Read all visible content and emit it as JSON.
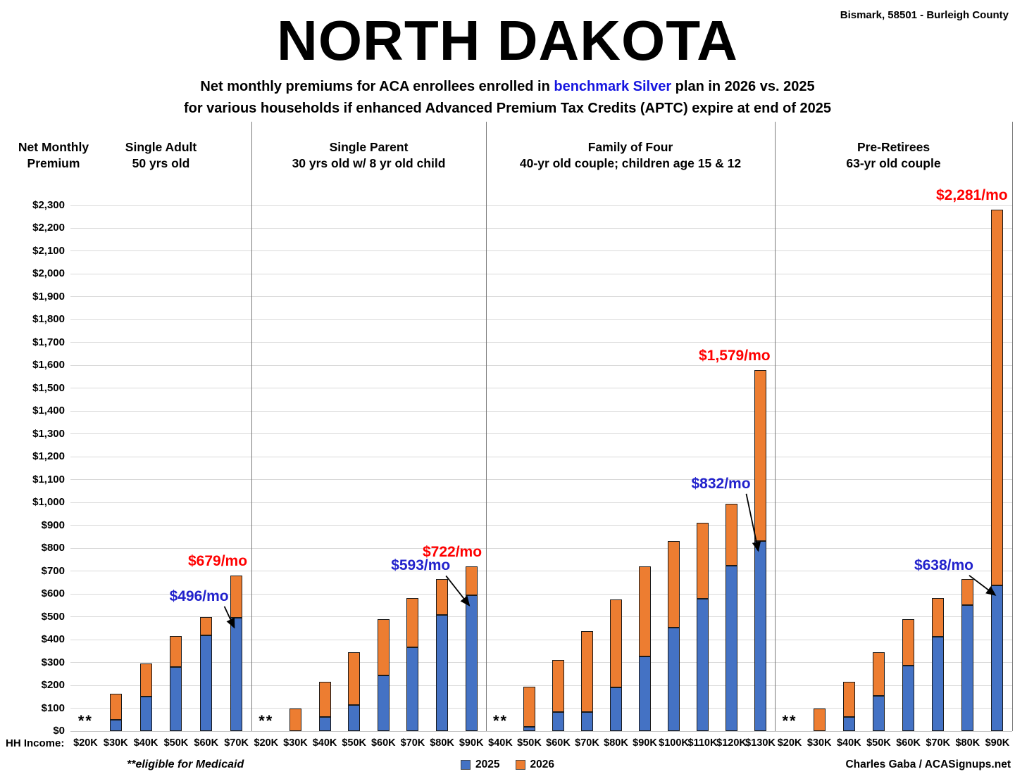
{
  "header": {
    "location": "Bismark, 58501 - Burleigh County",
    "title": "NORTH DAKOTA",
    "subtitle": {
      "part1": "Net monthly premiums for ACA enrollees enrolled in ",
      "highlight": "benchmark Silver",
      "part2": " plan in 2026 vs. 2025",
      "line2": "for various households if enhanced Advanced Premium Tax Credits (APTC) expire at end of 2025"
    }
  },
  "y_axis": {
    "title_line1": "Net Monthly",
    "title_line2": "Premium",
    "tick_labels": [
      "$0",
      "$100",
      "$200",
      "$300",
      "$400",
      "$500",
      "$600",
      "$700",
      "$800",
      "$900",
      "$1,000",
      "$1,100",
      "$1,200",
      "$1,300",
      "$1,400",
      "$1,500",
      "$1,600",
      "$1,700",
      "$1,800",
      "$1,900",
      "$2,000",
      "$2,100",
      "$2,200",
      "$2,300"
    ]
  },
  "x_axis": {
    "prefix": "HH Income:"
  },
  "chart_data": {
    "type": "bar",
    "stacked": true,
    "grid": true,
    "ylim": [
      0,
      2300
    ],
    "ytick_step": 100,
    "legend_position": "bottom-center",
    "series_meta": [
      {
        "name": "2025",
        "color": "#4472C4"
      },
      {
        "name": "2026",
        "color": "#ED7D31"
      }
    ],
    "medicaid_marker": "**",
    "panels": [
      {
        "title": [
          "Single Adult",
          "50 yrs old"
        ],
        "categories": [
          "$20K",
          "$30K",
          "$40K",
          "$50K",
          "$60K",
          "$70K"
        ],
        "medicaid": [
          true,
          false,
          false,
          false,
          false,
          false
        ],
        "net_2025": [
          null,
          48,
          151,
          281,
          420,
          496
        ],
        "net_2026": [
          null,
          163,
          297,
          415,
          500,
          679
        ],
        "label_2025": {
          "text": "$496/mo",
          "index": 5
        },
        "label_2026": {
          "text": "$679/mo",
          "index": 5
        }
      },
      {
        "title": [
          "Single Parent",
          "30 yrs old w/ 8 yr old child"
        ],
        "categories": [
          "$20K",
          "$30K",
          "$40K",
          "$50K",
          "$60K",
          "$70K",
          "$80K",
          "$90K"
        ],
        "medicaid": [
          true,
          false,
          false,
          false,
          false,
          false,
          false,
          false
        ],
        "net_2025": [
          null,
          0,
          61,
          114,
          242,
          366,
          508,
          593
        ],
        "net_2026": [
          null,
          100,
          215,
          345,
          490,
          583,
          665,
          722
        ],
        "label_2025": {
          "text": "$593/mo",
          "index": 7
        },
        "label_2026": {
          "text": "$722/mo",
          "index": 7
        }
      },
      {
        "title": [
          "Family of Four",
          "40-yr old couple; children age 15 & 12"
        ],
        "categories": [
          "$40K",
          "$50K",
          "$60K",
          "$70K",
          "$80K",
          "$90K",
          "$100K",
          "$110K",
          "$120K",
          "$130K"
        ],
        "medicaid": [
          true,
          false,
          false,
          false,
          false,
          false,
          false,
          false,
          false,
          false
        ],
        "net_2025": [
          null,
          18,
          82,
          84,
          192,
          326,
          452,
          580,
          723,
          832
        ],
        "net_2026": [
          null,
          195,
          310,
          437,
          575,
          720,
          832,
          912,
          995,
          1579
        ],
        "label_2025": {
          "text": "$832/mo",
          "index": 9
        },
        "label_2026": {
          "text": "$1,579/mo",
          "index": 9
        }
      },
      {
        "title": [
          "Pre-Retirees",
          "63-yr old couple"
        ],
        "categories": [
          "$20K",
          "$30K",
          "$40K",
          "$50K",
          "$60K",
          "$70K",
          "$80K",
          "$90K"
        ],
        "medicaid": [
          true,
          false,
          false,
          false,
          false,
          false,
          false,
          false
        ],
        "net_2025": [
          null,
          0,
          61,
          155,
          285,
          413,
          552,
          638
        ],
        "net_2026": [
          null,
          100,
          215,
          345,
          490,
          583,
          665,
          2281
        ],
        "label_2025": {
          "text": "$638/mo",
          "index": 7
        },
        "label_2026": {
          "text": "$2,281/mo",
          "index": 7
        }
      }
    ]
  },
  "footer": {
    "medicaid_note": "**eligible for Medicaid",
    "credit": "Charles Gaba / ACASignups.net"
  },
  "colors": {
    "bar_2025": "#4472C4",
    "bar_2026": "#ED7D31",
    "annotation_2025": "#2222CC",
    "annotation_2026": "#FF0000",
    "subtitle_highlight": "#1515E0",
    "gridline": "#D9D9D9"
  }
}
